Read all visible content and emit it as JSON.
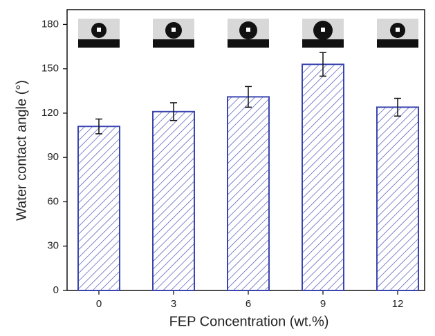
{
  "chart_data": {
    "type": "bar",
    "x_label": "FEP Concentration (wt.%)",
    "y_label": "Water contact angle (°)",
    "categories": [
      "0",
      "3",
      "6",
      "9",
      "12"
    ],
    "values": [
      111,
      121,
      131,
      153,
      124
    ],
    "errors": [
      5,
      6,
      7,
      8,
      6
    ],
    "color": "#3a45b0",
    "ylim": [
      0,
      190
    ],
    "yticks": [
      0,
      30,
      60,
      90,
      120,
      150,
      180
    ],
    "grid": false
  }
}
